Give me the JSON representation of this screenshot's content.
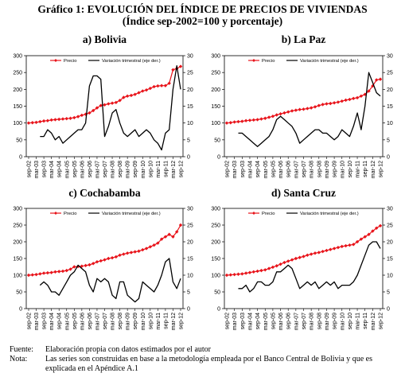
{
  "figure": {
    "title": "Gráfico 1: EVOLUCIÓN DEL ÍNDICE DE PRECIOS DE VIVIENDAS",
    "subtitle": "(Índice sep-2002=100 y porcentaje)"
  },
  "notes": {
    "source_label": "Fuente:",
    "source_text": "Elaboración propia con datos estimados por el autor",
    "note_label": "Nota:",
    "note_text": "Las series son construidas en base a la metodología empleada por el Banco Central de Bolivia y que es explicada en el Apéndice A.1"
  },
  "chart_data": [
    {
      "type": "line",
      "title": "a) Bolivia",
      "x_tick_labels": [
        "sep-02",
        "mar-03",
        "sep-03",
        "mar-04",
        "sep-04",
        "mar-05",
        "sep-05",
        "mar-06",
        "sep-06",
        "mar-07",
        "sep-07",
        "mar-08",
        "sep-08",
        "mar-09",
        "sep-09",
        "mar-10",
        "sep-10",
        "mar-11",
        "sep-11",
        "mar-12",
        "sep-12"
      ],
      "left_axis": {
        "ticks": [
          0,
          50,
          100,
          150,
          200,
          250,
          300
        ],
        "ylim": [
          0,
          300
        ]
      },
      "right_axis": {
        "ticks": [
          0,
          5,
          10,
          15,
          20,
          25,
          30
        ],
        "ylim": [
          0,
          30
        ]
      },
      "series": [
        {
          "name": "Precio",
          "color": "#e8141b",
          "marker": "diamond",
          "axis": "left",
          "x": [
            0,
            1,
            2,
            3,
            4,
            5,
            6,
            7,
            8,
            9,
            10,
            11,
            12,
            13,
            14,
            15,
            16,
            17,
            18,
            19,
            20,
            21,
            22,
            23,
            24,
            25,
            26,
            27,
            28,
            29,
            30,
            31,
            32,
            33,
            34,
            35,
            36,
            37,
            38,
            39,
            40
          ],
          "values": [
            100,
            101,
            102,
            104,
            106,
            107,
            109,
            110,
            111,
            112,
            113,
            114,
            116,
            119,
            123,
            126,
            130,
            137,
            145,
            152,
            154,
            157,
            159,
            161,
            167,
            176,
            180,
            182,
            185,
            190,
            195,
            198,
            203,
            208,
            210,
            211,
            211,
            218,
            258,
            262,
            268
          ]
        },
        {
          "name": "Variación trimestral (eje der.)",
          "color": "#000000",
          "axis": "right",
          "x": [
            3,
            4,
            5,
            6,
            7,
            8,
            9,
            10,
            11,
            12,
            13,
            14,
            15,
            16,
            17,
            18,
            19,
            20,
            21,
            22,
            23,
            24,
            25,
            26,
            27,
            28,
            29,
            30,
            31,
            32,
            33,
            34,
            35,
            36,
            37,
            38,
            39,
            40
          ],
          "values": [
            6,
            6,
            8,
            7,
            5,
            6,
            4,
            5,
            6,
            7,
            8,
            8,
            10,
            21,
            24,
            24,
            23,
            6,
            9,
            13,
            14,
            10,
            7,
            6,
            7,
            8,
            6,
            7,
            8,
            7,
            5,
            4,
            2,
            7,
            8,
            20,
            27,
            20
          ]
        }
      ]
    },
    {
      "type": "line",
      "title": "b) La Paz",
      "x_tick_labels": [
        "sep-02",
        "mar-03",
        "sep-03",
        "mar-04",
        "sep-04",
        "mar-05",
        "sep-05",
        "mar-06",
        "sep-06",
        "mar-07",
        "sep-07",
        "mar-08",
        "sep-08",
        "mar-09",
        "sep-09",
        "mar-10",
        "sep-10",
        "mar-11",
        "sep-11",
        "mar-12",
        "sep-12"
      ],
      "left_axis": {
        "ticks": [
          0,
          50,
          100,
          150,
          200,
          250,
          300
        ],
        "ylim": [
          0,
          300
        ]
      },
      "right_axis": {
        "ticks": [
          0,
          5,
          10,
          15,
          20,
          25,
          30
        ],
        "ylim": [
          0,
          30
        ]
      },
      "series": [
        {
          "name": "Precio",
          "color": "#e8141b",
          "marker": "diamond",
          "axis": "left",
          "x": [
            0,
            1,
            2,
            3,
            4,
            5,
            6,
            7,
            8,
            9,
            10,
            11,
            12,
            13,
            14,
            15,
            16,
            17,
            18,
            19,
            20,
            21,
            22,
            23,
            24,
            25,
            26,
            27,
            28,
            29,
            30,
            31,
            32,
            33,
            34,
            35,
            36,
            37,
            38,
            39,
            40
          ],
          "values": [
            100,
            101,
            103,
            104,
            105,
            107,
            108,
            109,
            110,
            112,
            114,
            117,
            120,
            124,
            127,
            130,
            133,
            136,
            138,
            140,
            141,
            143,
            145,
            148,
            152,
            155,
            157,
            158,
            160,
            162,
            165,
            168,
            170,
            173,
            175,
            180,
            185,
            195,
            210,
            228,
            230
          ]
        },
        {
          "name": "Variación trimestral (eje der.)",
          "color": "#000000",
          "axis": "right",
          "x": [
            3,
            4,
            5,
            6,
            7,
            8,
            9,
            10,
            11,
            12,
            13,
            14,
            15,
            16,
            17,
            18,
            19,
            20,
            21,
            22,
            23,
            24,
            25,
            26,
            27,
            28,
            29,
            30,
            31,
            32,
            33,
            34,
            35,
            36,
            37,
            38,
            39,
            40
          ],
          "values": [
            7,
            7,
            6,
            5,
            4,
            3,
            4,
            5,
            6,
            8,
            11,
            12,
            11,
            10,
            9,
            7,
            4,
            5,
            6,
            7,
            8,
            8,
            7,
            7,
            6,
            5,
            6,
            8,
            7,
            6,
            9,
            13,
            8,
            15,
            25,
            22,
            19,
            18
          ]
        }
      ]
    },
    {
      "type": "line",
      "title": "c) Cochabamba",
      "x_tick_labels": [
        "sep-02",
        "mar-03",
        "sep-03",
        "mar-04",
        "sep-04",
        "mar-05",
        "sep-05",
        "mar-06",
        "sep-06",
        "mar-07",
        "sep-07",
        "mar-08",
        "sep-08",
        "mar-09",
        "sep-09",
        "mar-10",
        "sep-10",
        "mar-11",
        "sep-11",
        "mar-12",
        "sep-12"
      ],
      "left_axis": {
        "ticks": [
          0,
          50,
          100,
          150,
          200,
          250,
          300
        ],
        "ylim": [
          0,
          300
        ]
      },
      "right_axis": {
        "ticks": [
          0,
          5,
          10,
          15,
          20,
          25,
          30
        ],
        "ylim": [
          0,
          30
        ]
      },
      "series": [
        {
          "name": "Precio",
          "color": "#e8141b",
          "marker": "diamond",
          "axis": "left",
          "x": [
            0,
            1,
            2,
            3,
            4,
            5,
            6,
            7,
            8,
            9,
            10,
            11,
            12,
            13,
            14,
            15,
            16,
            17,
            18,
            19,
            20,
            21,
            22,
            23,
            24,
            25,
            26,
            27,
            28,
            29,
            30,
            31,
            32,
            33,
            34,
            35,
            36,
            37,
            38,
            39,
            40
          ],
          "values": [
            100,
            101,
            102,
            104,
            106,
            107,
            108,
            110,
            111,
            112,
            114,
            118,
            125,
            126,
            127,
            129,
            131,
            135,
            140,
            143,
            146,
            150,
            152,
            155,
            160,
            163,
            166,
            168,
            170,
            172,
            176,
            180,
            185,
            190,
            196,
            208,
            215,
            222,
            215,
            230,
            250
          ]
        },
        {
          "name": "Variación trimestral (eje der.)",
          "color": "#000000",
          "axis": "right",
          "x": [
            3,
            4,
            5,
            6,
            7,
            8,
            9,
            10,
            11,
            12,
            13,
            14,
            15,
            16,
            17,
            18,
            19,
            20,
            21,
            22,
            23,
            24,
            25,
            26,
            27,
            28,
            29,
            30,
            31,
            32,
            33,
            34,
            35,
            36,
            37,
            38,
            39,
            40
          ],
          "values": [
            7,
            8,
            7,
            5,
            5,
            4,
            6,
            8,
            10,
            11,
            13,
            12,
            11,
            7,
            5,
            9,
            8,
            9,
            8,
            4,
            3,
            8,
            8,
            4,
            3,
            2,
            3,
            8,
            7,
            6,
            5,
            7,
            10,
            14,
            15,
            8,
            6,
            9
          ]
        }
      ]
    },
    {
      "type": "line",
      "title": "d) Santa Cruz",
      "x_tick_labels": [
        "sep-02",
        "mar-03",
        "sep-03",
        "mar-04",
        "sep-04",
        "mar-05",
        "sep-05",
        "mar-06",
        "sep-06",
        "mar-07",
        "sep-07",
        "mar-08",
        "sep-08",
        "mar-09",
        "sep-09",
        "mar-10",
        "sep-10",
        "mar-11",
        "sep-11",
        "mar-12",
        "sep-12"
      ],
      "left_axis": {
        "ticks": [
          0,
          50,
          100,
          150,
          200,
          250,
          300
        ],
        "ylim": [
          0,
          300
        ]
      },
      "right_axis": {
        "ticks": [
          0,
          5,
          10,
          15,
          20,
          25,
          30
        ],
        "ylim": [
          0,
          30
        ]
      },
      "series": [
        {
          "name": "Precio",
          "color": "#e8141b",
          "marker": "diamond",
          "axis": "left",
          "x": [
            0,
            1,
            2,
            3,
            4,
            5,
            6,
            7,
            8,
            9,
            10,
            11,
            12,
            13,
            14,
            15,
            16,
            17,
            18,
            19,
            20,
            21,
            22,
            23,
            24,
            25,
            26,
            27,
            28,
            29,
            30,
            31,
            32,
            33,
            34,
            35,
            36,
            37,
            38,
            39,
            40
          ],
          "values": [
            100,
            101,
            102,
            103,
            104,
            106,
            108,
            110,
            112,
            114,
            116,
            120,
            124,
            128,
            133,
            138,
            142,
            146,
            150,
            153,
            156,
            160,
            163,
            166,
            168,
            171,
            174,
            177,
            180,
            183,
            186,
            188,
            190,
            192,
            200,
            208,
            215,
            222,
            232,
            241,
            248
          ]
        },
        {
          "name": "Variación trimestral (eje der.)",
          "color": "#000000",
          "axis": "right",
          "x": [
            3,
            4,
            5,
            6,
            7,
            8,
            9,
            10,
            11,
            12,
            13,
            14,
            15,
            16,
            17,
            18,
            19,
            20,
            21,
            22,
            23,
            24,
            25,
            26,
            27,
            28,
            29,
            30,
            31,
            32,
            33,
            34,
            35,
            36,
            37,
            38,
            39,
            40
          ],
          "values": [
            6,
            6,
            7,
            5,
            6,
            8,
            8,
            7,
            7,
            8,
            11,
            11,
            12,
            13,
            12,
            9,
            6,
            7,
            8,
            7,
            8,
            6,
            7,
            8,
            7,
            8,
            6,
            7,
            7,
            7,
            8,
            10,
            13,
            16,
            19,
            20,
            20,
            18
          ]
        }
      ]
    }
  ]
}
